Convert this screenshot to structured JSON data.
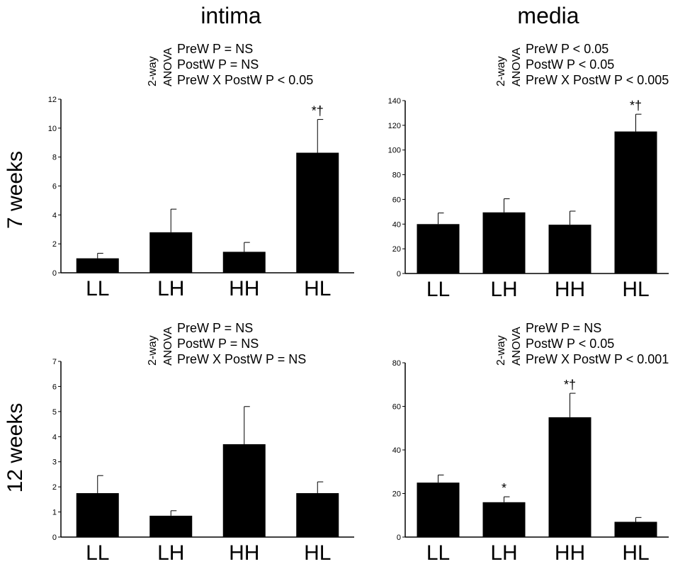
{
  "column_titles": [
    "intima",
    "media"
  ],
  "row_titles": [
    "7 weeks",
    "12 weeks"
  ],
  "chart_data": [
    {
      "type": "bar",
      "categories": [
        "LL",
        "LH",
        "HH",
        "HL"
      ],
      "values": [
        1.0,
        2.8,
        1.45,
        8.3
      ],
      "errors": [
        0.35,
        1.6,
        0.65,
        2.3
      ],
      "significance": [
        "",
        "",
        "",
        "*†"
      ],
      "ylim": [
        0,
        12
      ],
      "yticks": [
        0,
        2,
        4,
        6,
        8,
        10,
        12
      ],
      "anova": {
        "label_top": "2-way",
        "label_bottom": "ANOVA",
        "lines": [
          "PreW P = NS",
          "PostW P = NS",
          "PreW X PostW P < 0.05"
        ]
      }
    },
    {
      "type": "bar",
      "categories": [
        "LL",
        "LH",
        "HH",
        "HL"
      ],
      "values": [
        40,
        49.5,
        39.5,
        115
      ],
      "errors": [
        9,
        11,
        11,
        14
      ],
      "significance": [
        "",
        "",
        "",
        "*†"
      ],
      "ylim": [
        0,
        140
      ],
      "yticks": [
        0,
        20,
        40,
        60,
        80,
        100,
        120,
        140
      ],
      "anova": {
        "label_top": "2-way",
        "label_bottom": "ANOVA",
        "lines": [
          "PreW P < 0.05",
          "PostW P < 0.05",
          "PreW X PostW P < 0.005"
        ]
      }
    },
    {
      "type": "bar",
      "categories": [
        "LL",
        "LH",
        "HH",
        "HL"
      ],
      "values": [
        1.75,
        0.85,
        3.7,
        1.75
      ],
      "errors": [
        0.7,
        0.2,
        1.5,
        0.45
      ],
      "significance": [
        "",
        "",
        "",
        ""
      ],
      "ylim": [
        0,
        7
      ],
      "yticks": [
        0,
        1,
        2,
        3,
        4,
        5,
        6,
        7
      ],
      "anova": {
        "label_top": "2-way",
        "label_bottom": "ANOVA",
        "lines": [
          "PreW P = NS",
          "PostW P = NS",
          "PreW X PostW P = NS"
        ]
      }
    },
    {
      "type": "bar",
      "categories": [
        "LL",
        "LH",
        "HH",
        "HL"
      ],
      "values": [
        25,
        16,
        55,
        7
      ],
      "errors": [
        3.5,
        2.5,
        11,
        2
      ],
      "significance": [
        "",
        "*",
        "*†",
        ""
      ],
      "ylim": [
        0,
        80
      ],
      "yticks": [
        0,
        20,
        40,
        60,
        80
      ],
      "anova": {
        "label_top": "2-way",
        "label_bottom": "ANOVA",
        "lines": [
          "PreW P = NS",
          "PostW P < 0.05",
          "PreW X PostW P < 0.001"
        ]
      }
    }
  ]
}
